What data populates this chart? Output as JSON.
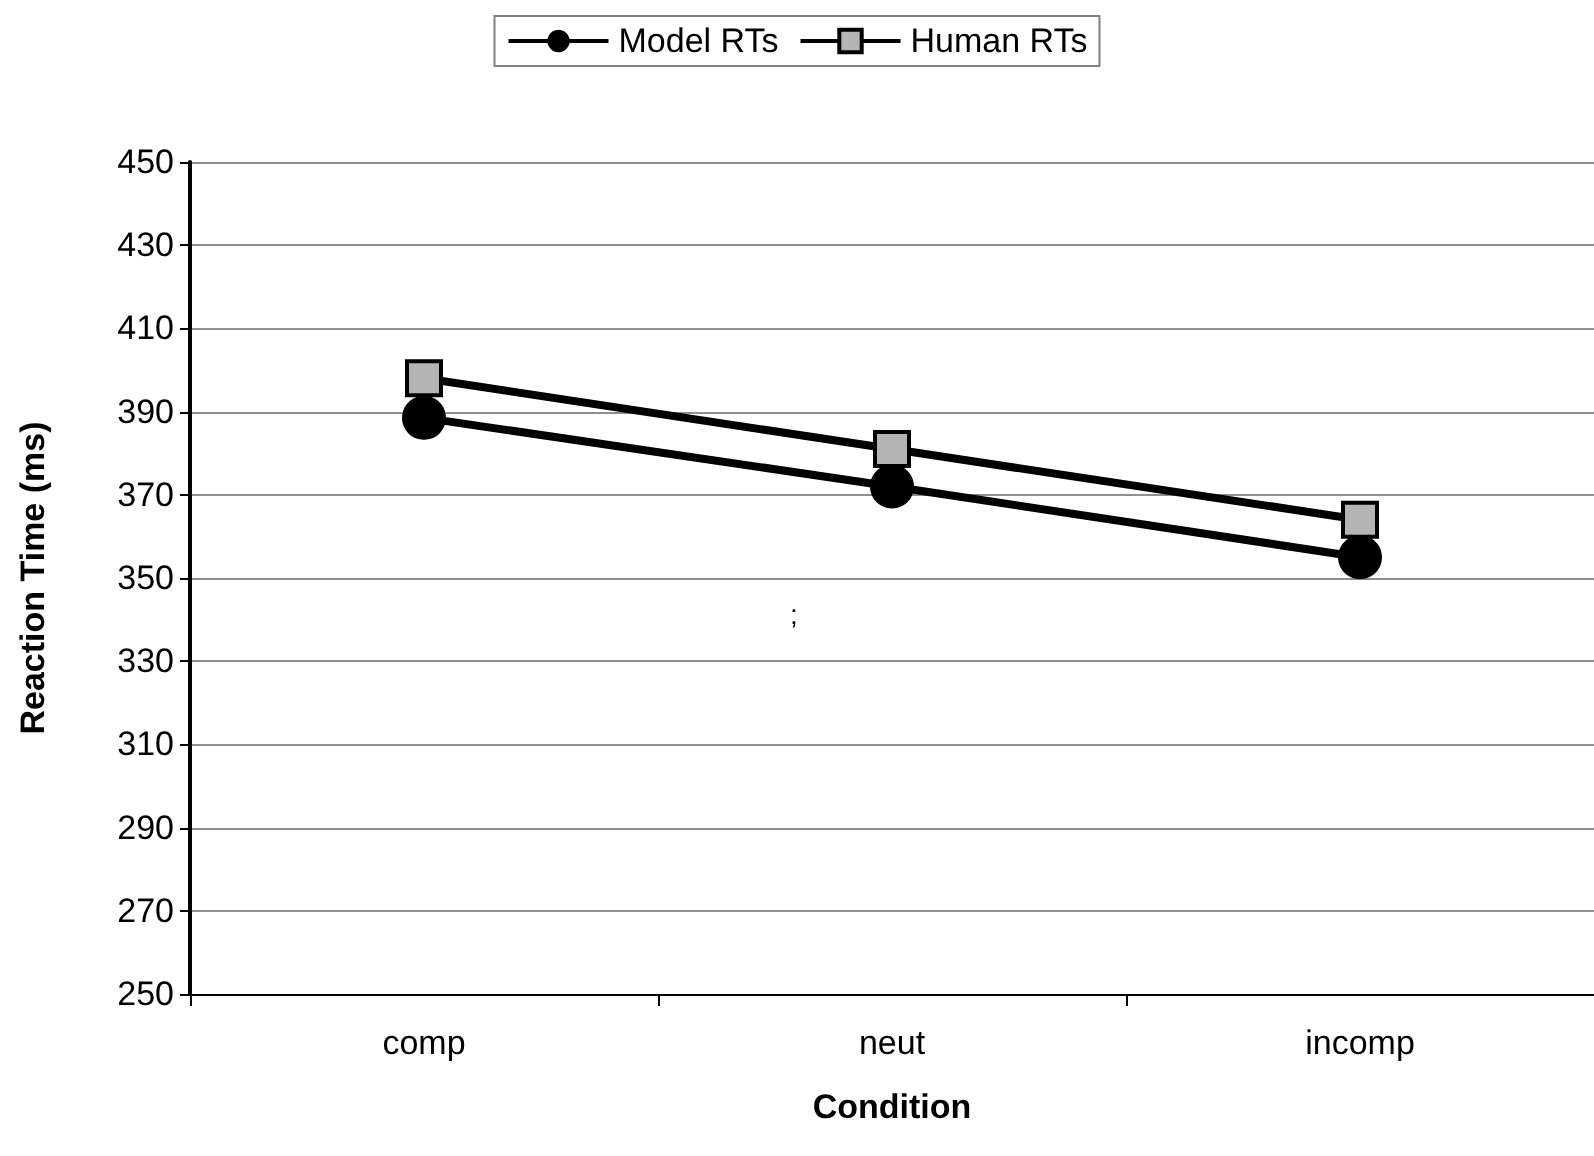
{
  "chart_data": {
    "type": "line",
    "xlabel": "Condition",
    "ylabel": "Reaction Time (ms)",
    "categories": [
      "comp",
      "neut",
      "incomp"
    ],
    "series": [
      {
        "name": "Model RTs",
        "color": "#000000",
        "marker": "circle",
        "values": [
          388.5,
          372,
          355
        ]
      },
      {
        "name": "Human RTs",
        "color": "#000000",
        "marker": "square",
        "values": [
          398,
          381,
          364
        ]
      }
    ],
    "ylim": [
      250,
      450
    ],
    "yticks": [
      250,
      270,
      290,
      310,
      330,
      350,
      370,
      390,
      410,
      430,
      450
    ],
    "grid": "y",
    "legend": "top",
    "annotations": [
      ";"
    ]
  }
}
